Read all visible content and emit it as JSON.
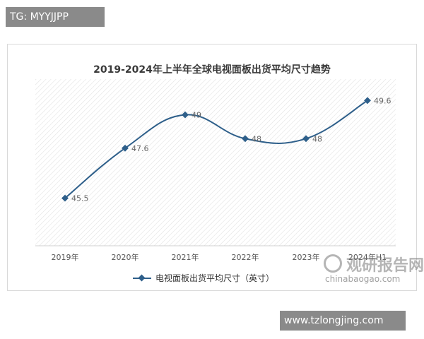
{
  "top_tag": "TG: MYYJJPP",
  "bottom_tag": "www.tzlongjing.com",
  "watermark": {
    "cn": "观研报告网",
    "url": "chinabaogao.com"
  },
  "colors": {
    "line": "#2e5f8a",
    "grid_hatch": "#e2e2e2"
  },
  "chart_data": {
    "type": "line",
    "title": "2019-2024年上半年全球电视面板出货平均尺寸趋势",
    "categories": [
      "2019年",
      "2020年",
      "2021年",
      "2022年",
      "2023年",
      "2024年H1"
    ],
    "series": [
      {
        "name": "电视面板出货平均尺寸（英寸）",
        "values": [
          45.5,
          47.6,
          49,
          48,
          48,
          49.6
        ]
      }
    ],
    "ylim": [
      43.5,
      50.5
    ],
    "grid": false,
    "legend": "bottom-center"
  }
}
